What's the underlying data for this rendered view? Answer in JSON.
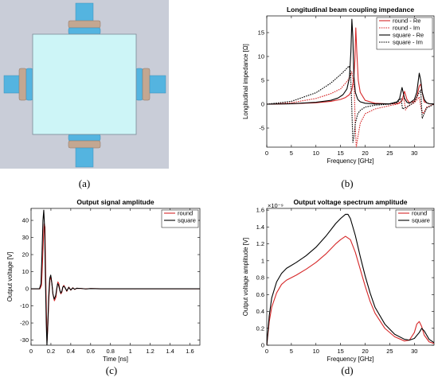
{
  "captions": [
    "(a)",
    "(b)",
    "(c)",
    "(d)"
  ],
  "diagram_colors": {
    "background": "#c9cdd8",
    "box_fill": "#cdf5f7",
    "pipe": "#54b4e0",
    "flange": "#c3a791"
  },
  "chart_data": [
    {
      "id": "impedance",
      "type": "line",
      "title": "Longitudinal beam coupling impedance",
      "xlabel": "Frequency [GHz]",
      "ylabel": "Longitudinal impedance [Ω]",
      "xlim": [
        0,
        34
      ],
      "ylim": [
        -9,
        18.5
      ],
      "xticks": [
        "0",
        "5",
        "10",
        "15",
        "20",
        "25",
        "30"
      ],
      "yticks": [
        "-5",
        "0",
        "5",
        "10",
        "15"
      ],
      "grid": false,
      "legend": "top-right",
      "series": [
        {
          "name": "round - Re",
          "color": "#d62728",
          "dash": false,
          "x": [
            0,
            5,
            10,
            13,
            15,
            16,
            16.8,
            17.3,
            17.7,
            17.9,
            18.1,
            18.3,
            18.6,
            19,
            20,
            22,
            25,
            27,
            27.5,
            28,
            28.5,
            29,
            30,
            30.5,
            31,
            31.3,
            31.6,
            32,
            33,
            34
          ],
          "y": [
            0,
            0.1,
            0.3,
            0.6,
            1,
            1.4,
            2,
            3,
            5.5,
            9,
            16,
            11,
            5,
            2.5,
            0.8,
            0.2,
            0.05,
            0.2,
            0.8,
            2.7,
            1,
            0.3,
            0.6,
            1.5,
            3.8,
            4.2,
            2.5,
            0.5,
            0.1,
            0.05
          ]
        },
        {
          "name": "round - Im",
          "color": "#d62728",
          "dash": true,
          "x": [
            0,
            5,
            10,
            13,
            15,
            16.5,
            17.3,
            17.8,
            18,
            18.2,
            18.5,
            19,
            20,
            22,
            25,
            26.5,
            27.5,
            27.9,
            28.2,
            28.8,
            30,
            31,
            31.4,
            31.8,
            32.5,
            34
          ],
          "y": [
            0,
            0.3,
            1.2,
            2.2,
            3.2,
            5,
            6.8,
            3,
            -5,
            -9,
            -7,
            -4,
            -2,
            -1,
            -0.3,
            0,
            0.8,
            1.2,
            -1.2,
            -0.3,
            0.3,
            1.5,
            -1,
            -2,
            -0.6,
            0
          ]
        },
        {
          "name": "square - Re",
          "color": "#000000",
          "dash": false,
          "x": [
            0,
            5,
            10,
            13,
            14.5,
            15.5,
            16.3,
            16.8,
            17.1,
            17.3,
            17.5,
            17.7,
            18,
            18.5,
            19,
            20,
            22,
            25,
            26.5,
            27,
            27.5,
            28,
            28.5,
            29,
            30,
            30.5,
            31,
            31.3,
            31.6,
            32,
            32.5,
            33,
            34
          ],
          "y": [
            0,
            0.1,
            0.4,
            0.8,
            1.3,
            2,
            3.2,
            5.5,
            11,
            17.8,
            14,
            6,
            2.5,
            1,
            0.5,
            0.2,
            0.05,
            0.1,
            0.5,
            1.2,
            3.5,
            1.2,
            0.4,
            0.2,
            1,
            2.5,
            6.5,
            5,
            2.5,
            1,
            0.3,
            0.1,
            0.05
          ]
        },
        {
          "name": "square - Im",
          "color": "#000000",
          "dash": true,
          "x": [
            0,
            5,
            10,
            13,
            15,
            16,
            16.7,
            17,
            17.2,
            17.5,
            17.7,
            18,
            18.5,
            19,
            20,
            22,
            25,
            26.5,
            27,
            27.3,
            27.6,
            28,
            29,
            30,
            31,
            31.3,
            31.6,
            32,
            32.5,
            34
          ],
          "y": [
            0,
            0.6,
            2.4,
            4.4,
            6.2,
            7.2,
            8,
            7,
            2,
            -8,
            -7,
            -4,
            -2,
            -1.3,
            -0.6,
            -0.2,
            0,
            0.3,
            0.9,
            1.2,
            -1,
            -0.8,
            -0.3,
            0.5,
            2.5,
            3,
            -3,
            -2,
            -0.8,
            0
          ]
        }
      ]
    },
    {
      "id": "signal",
      "type": "line",
      "title": "Output signal amplitude",
      "xlabel": "Time [ns]",
      "ylabel": "Output voltage [V]",
      "xlim": [
        0,
        1.7
      ],
      "ylim": [
        -33,
        47
      ],
      "xticks": [
        "0",
        "0.2",
        "0.4",
        "0.6",
        "0.8",
        "1",
        "1.2",
        "1.4",
        "1.6"
      ],
      "yticks": [
        "-30",
        "-20",
        "-10",
        "0",
        "10",
        "20",
        "30",
        "40"
      ],
      "grid": false,
      "legend": "top-right",
      "series": [
        {
          "name": "round",
          "color": "#d62728",
          "dash": false,
          "x": [
            0,
            0.09,
            0.105,
            0.115,
            0.125,
            0.132,
            0.14,
            0.147,
            0.155,
            0.162,
            0.17,
            0.18,
            0.19,
            0.2,
            0.21,
            0.22,
            0.235,
            0.25,
            0.26,
            0.27,
            0.28,
            0.29,
            0.3,
            0.31,
            0.32,
            0.33,
            0.34,
            0.36,
            0.38,
            0.4,
            0.42,
            0.44,
            0.46,
            0.5,
            0.55,
            0.6,
            0.7,
            1.0,
            1.7
          ],
          "y": [
            0,
            0,
            2,
            15,
            30,
            38,
            36,
            10,
            -15,
            -30,
            -20,
            -5,
            5,
            7,
            3,
            -3,
            -7,
            -5,
            0,
            4,
            3,
            -1,
            -3,
            -2,
            1,
            2,
            1,
            -1.5,
            1,
            -0.8,
            0.6,
            -0.4,
            0.3,
            0.2,
            -0.1,
            0.1,
            0,
            0,
            0
          ]
        },
        {
          "name": "square",
          "color": "#000000",
          "dash": false,
          "x": [
            0,
            0.085,
            0.1,
            0.11,
            0.12,
            0.128,
            0.137,
            0.145,
            0.153,
            0.16,
            0.168,
            0.178,
            0.188,
            0.198,
            0.21,
            0.22,
            0.233,
            0.248,
            0.258,
            0.268,
            0.278,
            0.29,
            0.3,
            0.31,
            0.32,
            0.33,
            0.34,
            0.36,
            0.38,
            0.4,
            0.42,
            0.44,
            0.46,
            0.5,
            0.55,
            0.6,
            0.7,
            1.0,
            1.7
          ],
          "y": [
            0,
            0,
            3,
            20,
            40,
            46,
            35,
            5,
            -20,
            -33,
            -22,
            -4,
            6,
            8,
            3,
            -3,
            -6,
            -4,
            0,
            3,
            2,
            -1,
            -2.5,
            -1.5,
            1,
            1.5,
            0.8,
            -1.2,
            0.8,
            -0.7,
            0.5,
            -0.3,
            0.3,
            0.2,
            -0.1,
            0.1,
            0,
            0,
            0
          ]
        }
      ]
    },
    {
      "id": "spectrum",
      "type": "line",
      "title": "Output voltage spectrum amplitude",
      "xlabel": "Frequency [GHz]",
      "ylabel": "Output voltage amplitude [V]",
      "exponent_label": "×10⁻⁹",
      "xlim": [
        0,
        34
      ],
      "ylim": [
        0,
        1.62
      ],
      "xticks": [
        "0",
        "5",
        "10",
        "15",
        "20",
        "25",
        "30"
      ],
      "yticks": [
        "0",
        "0.2",
        "0.4",
        "0.6",
        "0.8",
        "1",
        "1.2",
        "1.4",
        "1.6"
      ],
      "grid": false,
      "legend": "top-right",
      "series": [
        {
          "name": "round",
          "color": "#d62728",
          "dash": false,
          "x": [
            0,
            0.5,
            1,
            2,
            3,
            4,
            6,
            8,
            10,
            12,
            14,
            15,
            16,
            17,
            18,
            19,
            20,
            21,
            22,
            24,
            26,
            28,
            29,
            30,
            30.5,
            31,
            31.5,
            32,
            33,
            34
          ],
          "y": [
            0,
            0.28,
            0.45,
            0.62,
            0.72,
            0.77,
            0.83,
            0.9,
            0.98,
            1.08,
            1.2,
            1.25,
            1.29,
            1.25,
            1.1,
            0.9,
            0.7,
            0.52,
            0.38,
            0.2,
            0.1,
            0.05,
            0.06,
            0.15,
            0.25,
            0.28,
            0.22,
            0.12,
            0.04,
            0.02
          ]
        },
        {
          "name": "square",
          "color": "#000000",
          "dash": false,
          "x": [
            0,
            0.5,
            1,
            2,
            3,
            4,
            6,
            8,
            10,
            12,
            14,
            15,
            16,
            16.5,
            17,
            18,
            19,
            20,
            21,
            22,
            24,
            26,
            28,
            29,
            30,
            31,
            31.5,
            32,
            32.5,
            33,
            34
          ],
          "y": [
            0,
            0.35,
            0.56,
            0.75,
            0.85,
            0.91,
            0.98,
            1.06,
            1.16,
            1.29,
            1.44,
            1.5,
            1.55,
            1.55,
            1.5,
            1.3,
            1.05,
            0.82,
            0.62,
            0.45,
            0.25,
            0.13,
            0.07,
            0.06,
            0.08,
            0.15,
            0.2,
            0.17,
            0.12,
            0.07,
            0.03
          ]
        }
      ]
    }
  ]
}
